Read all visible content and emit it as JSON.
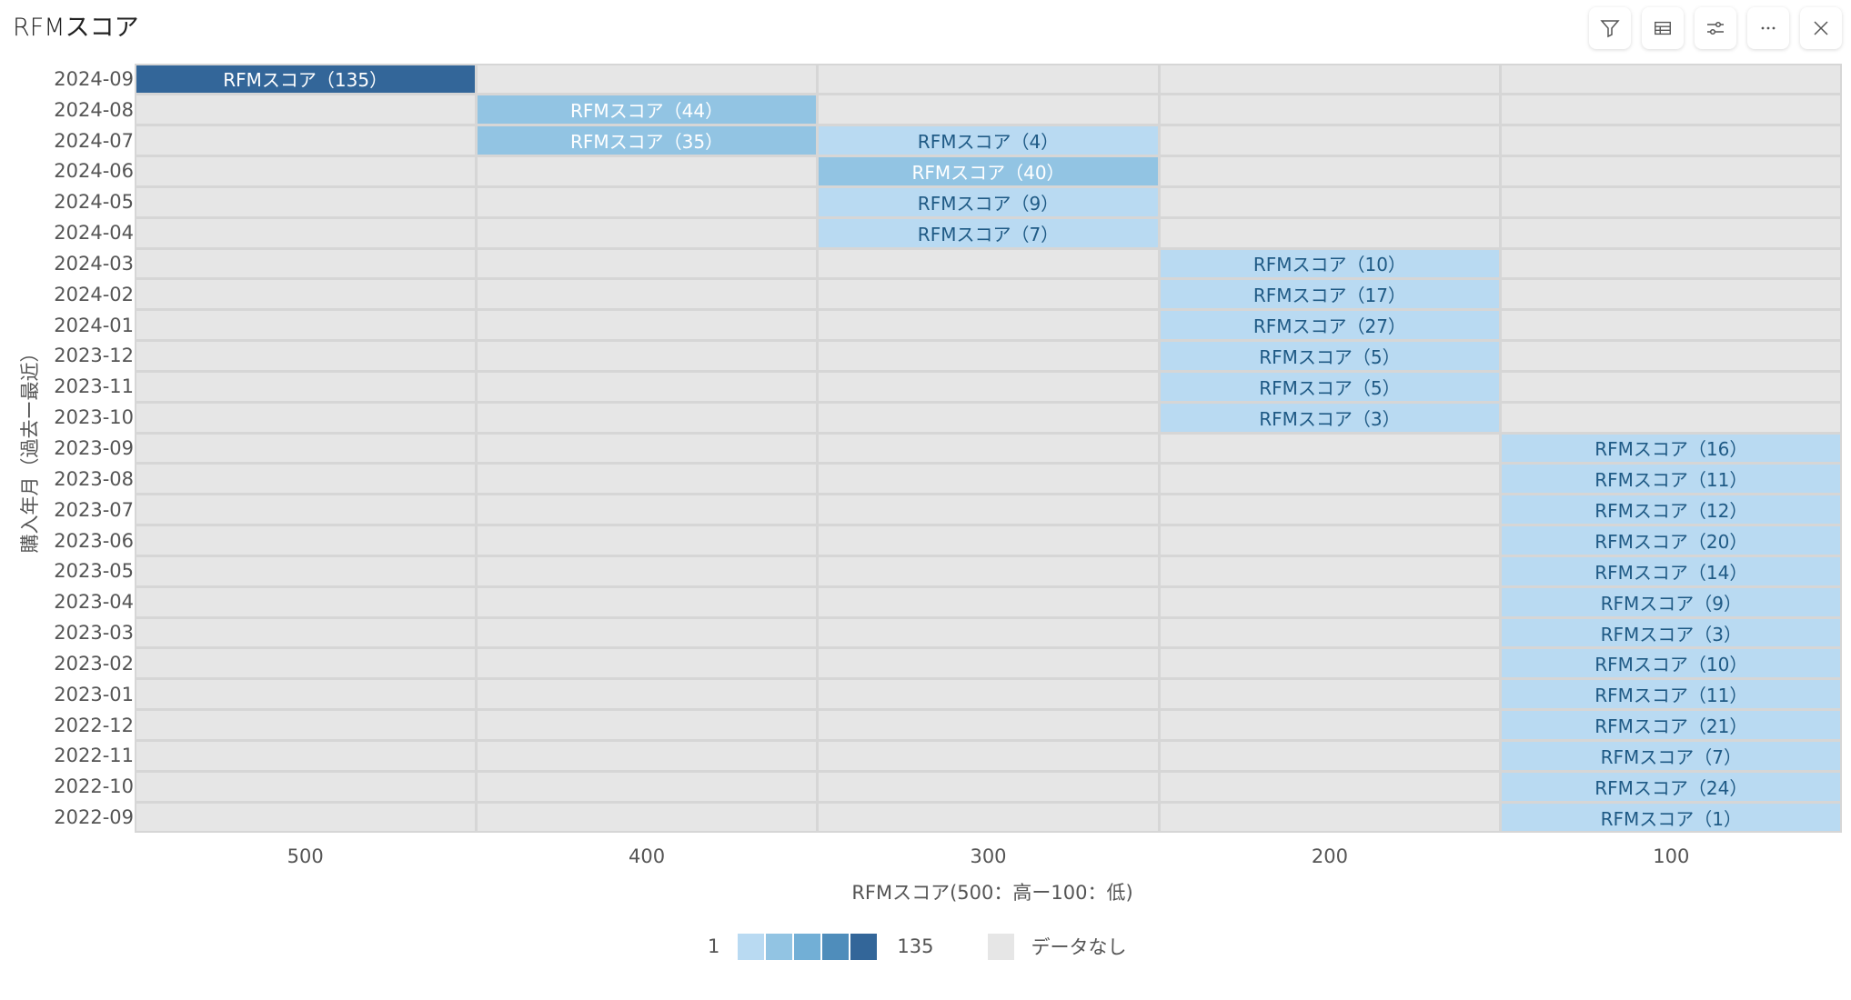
{
  "title": "RFMスコア",
  "toolbar": [
    {
      "name": "filter-button",
      "icon": "filter-icon"
    },
    {
      "name": "table-view-button",
      "icon": "table-icon"
    },
    {
      "name": "settings-button",
      "icon": "sliders-icon"
    },
    {
      "name": "more-button",
      "icon": "more-icon"
    },
    {
      "name": "close-button",
      "icon": "close-icon"
    }
  ],
  "chart_data": {
    "type": "heatmap",
    "title": "RFMスコア",
    "xlabel": "RFMスコア(500：高ー100：低)",
    "ylabel": "購入年月（過去ー最近）",
    "x_categories": [
      "500",
      "400",
      "300",
      "200",
      "100"
    ],
    "y_categories": [
      "2024-09",
      "2024-08",
      "2024-07",
      "2024-06",
      "2024-05",
      "2024-04",
      "2024-03",
      "2024-02",
      "2024-01",
      "2023-12",
      "2023-11",
      "2023-10",
      "2023-09",
      "2023-08",
      "2023-07",
      "2023-06",
      "2023-05",
      "2023-04",
      "2023-03",
      "2023-02",
      "2023-01",
      "2022-12",
      "2022-11",
      "2022-10",
      "2022-09"
    ],
    "label_prefix": "RFMスコア",
    "cells": [
      {
        "y": "2024-09",
        "x": "500",
        "value": 135
      },
      {
        "y": "2024-08",
        "x": "400",
        "value": 44
      },
      {
        "y": "2024-07",
        "x": "400",
        "value": 35
      },
      {
        "y": "2024-07",
        "x": "300",
        "value": 4
      },
      {
        "y": "2024-06",
        "x": "300",
        "value": 40
      },
      {
        "y": "2024-05",
        "x": "300",
        "value": 9
      },
      {
        "y": "2024-04",
        "x": "300",
        "value": 7
      },
      {
        "y": "2024-03",
        "x": "200",
        "value": 10
      },
      {
        "y": "2024-02",
        "x": "200",
        "value": 17
      },
      {
        "y": "2024-01",
        "x": "200",
        "value": 27
      },
      {
        "y": "2023-12",
        "x": "200",
        "value": 5
      },
      {
        "y": "2023-11",
        "x": "200",
        "value": 5
      },
      {
        "y": "2023-10",
        "x": "200",
        "value": 3
      },
      {
        "y": "2023-09",
        "x": "100",
        "value": 16
      },
      {
        "y": "2023-08",
        "x": "100",
        "value": 11
      },
      {
        "y": "2023-07",
        "x": "100",
        "value": 12
      },
      {
        "y": "2023-06",
        "x": "100",
        "value": 20
      },
      {
        "y": "2023-05",
        "x": "100",
        "value": 14
      },
      {
        "y": "2023-04",
        "x": "100",
        "value": 9
      },
      {
        "y": "2023-03",
        "x": "100",
        "value": 3
      },
      {
        "y": "2023-02",
        "x": "100",
        "value": 10
      },
      {
        "y": "2023-01",
        "x": "100",
        "value": 11
      },
      {
        "y": "2022-12",
        "x": "100",
        "value": 21
      },
      {
        "y": "2022-11",
        "x": "100",
        "value": 7
      },
      {
        "y": "2022-10",
        "x": "100",
        "value": 24
      },
      {
        "y": "2022-09",
        "x": "100",
        "value": 1
      }
    ],
    "color_scale": {
      "min": 1,
      "max": 135,
      "colors": [
        "#b9daf2",
        "#92c4e3",
        "#72afd6",
        "#4f8dbb",
        "#336699"
      ],
      "no_data_color": "#e6e6e6"
    },
    "legend": {
      "min_label": "1",
      "max_label": "135",
      "no_data_label": "データなし",
      "position": "bottom"
    }
  }
}
